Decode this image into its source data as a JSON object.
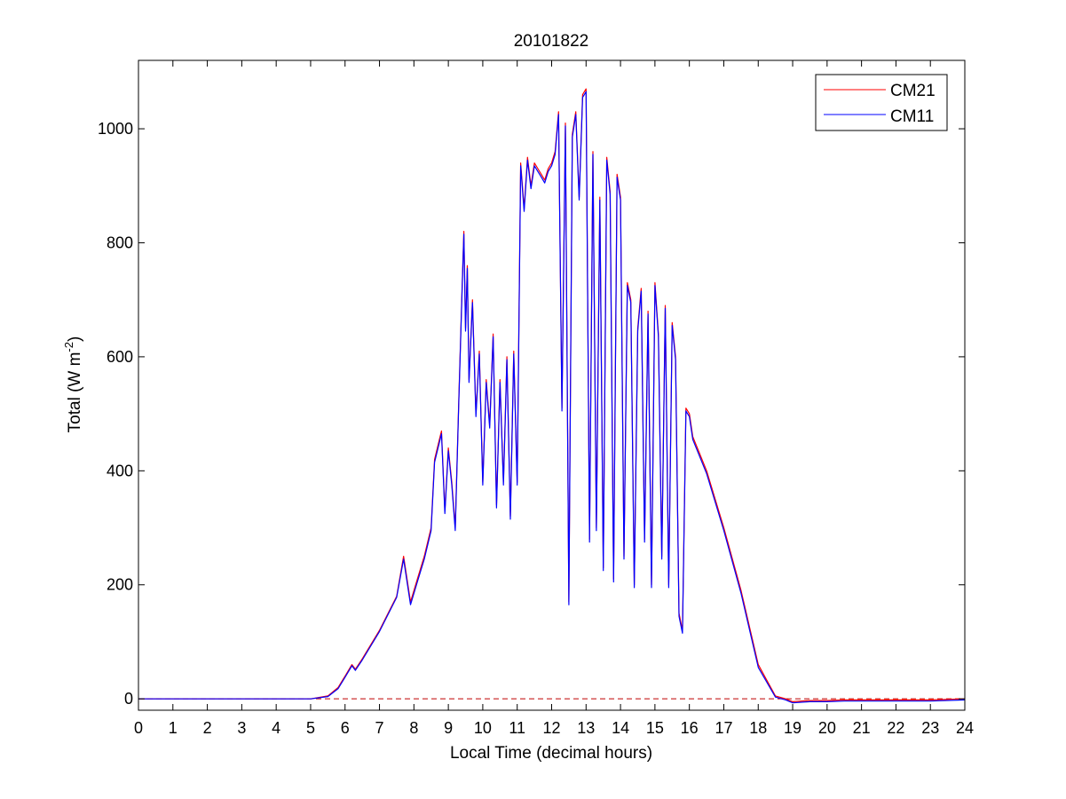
{
  "chart_data": {
    "type": "line",
    "title": "20101822",
    "xlabel": "Local Time (decimal hours)",
    "ylabel_main": "Total (W m",
    "ylabel_sup": "-2",
    "ylabel_close": ")",
    "xlim": [
      0,
      24
    ],
    "ylim": [
      -20,
      1120
    ],
    "xticks": [
      0,
      1,
      2,
      3,
      4,
      5,
      6,
      7,
      8,
      9,
      10,
      11,
      12,
      13,
      14,
      15,
      16,
      17,
      18,
      19,
      20,
      21,
      22,
      23,
      24
    ],
    "yticks": [
      0,
      200,
      400,
      600,
      800,
      1000
    ],
    "grid": false,
    "legend_position": "top-right",
    "reference_line": {
      "y": 0,
      "style": "dashed",
      "color": "#c00000"
    },
    "series": [
      {
        "name": "CM21",
        "color": "#ff0000",
        "x": [
          0,
          5,
          5.5,
          5.8,
          6,
          6.2,
          6.3,
          6.5,
          7,
          7.5,
          7.7,
          7.9,
          8.1,
          8.3,
          8.5,
          8.6,
          8.8,
          8.9,
          9,
          9.1,
          9.2,
          9.3,
          9.4,
          9.45,
          9.5,
          9.55,
          9.6,
          9.7,
          9.8,
          9.9,
          10,
          10.1,
          10.2,
          10.3,
          10.4,
          10.5,
          10.6,
          10.7,
          10.8,
          10.9,
          11,
          11.1,
          11.2,
          11.3,
          11.4,
          11.5,
          11.6,
          11.7,
          11.8,
          11.9,
          12,
          12.1,
          12.2,
          12.3,
          12.4,
          12.5,
          12.6,
          12.7,
          12.8,
          12.9,
          13,
          13.1,
          13.2,
          13.3,
          13.4,
          13.5,
          13.6,
          13.7,
          13.8,
          13.9,
          14,
          14.1,
          14.2,
          14.3,
          14.4,
          14.5,
          14.6,
          14.7,
          14.8,
          14.9,
          15,
          15.1,
          15.2,
          15.3,
          15.4,
          15.5,
          15.6,
          15.7,
          15.8,
          15.9,
          16,
          16.1,
          16.5,
          17,
          17.5,
          18,
          18.5,
          18.8,
          19,
          19.5,
          20,
          20.5,
          21,
          22,
          23,
          24
        ],
        "y": [
          0,
          0,
          5,
          20,
          40,
          60,
          52,
          70,
          120,
          180,
          250,
          170,
          210,
          250,
          300,
          420,
          470,
          330,
          440,
          380,
          300,
          520,
          720,
          820,
          650,
          760,
          560,
          700,
          500,
          610,
          380,
          560,
          480,
          640,
          340,
          560,
          380,
          600,
          320,
          610,
          380,
          940,
          860,
          950,
          900,
          940,
          930,
          920,
          910,
          930,
          940,
          960,
          1030,
          510,
          1010,
          170,
          990,
          1030,
          880,
          1060,
          1070,
          280,
          960,
          300,
          880,
          230,
          950,
          890,
          210,
          920,
          880,
          250,
          730,
          700,
          200,
          650,
          720,
          280,
          680,
          200,
          730,
          640,
          250,
          690,
          200,
          660,
          600,
          150,
          120,
          510,
          500,
          460,
          400,
          300,
          190,
          60,
          5,
          0,
          -5,
          -3,
          -3,
          -2,
          -2,
          -2,
          -2,
          0
        ]
      },
      {
        "name": "CM11",
        "color": "#0000ff",
        "x": [
          0,
          5,
          5.5,
          5.8,
          6,
          6.2,
          6.3,
          6.5,
          7,
          7.5,
          7.7,
          7.9,
          8.1,
          8.3,
          8.5,
          8.6,
          8.8,
          8.9,
          9,
          9.1,
          9.2,
          9.3,
          9.4,
          9.45,
          9.5,
          9.55,
          9.6,
          9.7,
          9.8,
          9.9,
          10,
          10.1,
          10.2,
          10.3,
          10.4,
          10.5,
          10.6,
          10.7,
          10.8,
          10.9,
          11,
          11.1,
          11.2,
          11.3,
          11.4,
          11.5,
          11.6,
          11.7,
          11.8,
          11.9,
          12,
          12.1,
          12.2,
          12.3,
          12.4,
          12.5,
          12.6,
          12.7,
          12.8,
          12.9,
          13,
          13.1,
          13.2,
          13.3,
          13.4,
          13.5,
          13.6,
          13.7,
          13.8,
          13.9,
          14,
          14.1,
          14.2,
          14.3,
          14.4,
          14.5,
          14.6,
          14.7,
          14.8,
          14.9,
          15,
          15.1,
          15.2,
          15.3,
          15.4,
          15.5,
          15.6,
          15.7,
          15.8,
          15.9,
          16,
          16.1,
          16.5,
          17,
          17.5,
          18,
          18.5,
          18.8,
          19,
          19.5,
          20,
          20.5,
          21,
          22,
          23,
          24
        ],
        "y": [
          0,
          0,
          4,
          18,
          38,
          58,
          50,
          68,
          118,
          178,
          245,
          165,
          205,
          245,
          295,
          415,
          465,
          325,
          435,
          375,
          295,
          515,
          715,
          815,
          645,
          755,
          555,
          695,
          495,
          605,
          375,
          555,
          475,
          635,
          335,
          555,
          375,
          595,
          315,
          605,
          375,
          935,
          855,
          945,
          895,
          935,
          925,
          915,
          905,
          925,
          935,
          955,
          1025,
          505,
          1005,
          165,
          985,
          1025,
          875,
          1055,
          1065,
          275,
          955,
          295,
          875,
          225,
          945,
          885,
          205,
          915,
          875,
          245,
          725,
          695,
          195,
          645,
          715,
          275,
          675,
          195,
          725,
          635,
          245,
          685,
          195,
          655,
          595,
          145,
          115,
          505,
          495,
          455,
          395,
          295,
          185,
          55,
          3,
          -2,
          -7,
          -5,
          -5,
          -4,
          -4,
          -4,
          -4,
          -2
        ]
      }
    ]
  }
}
